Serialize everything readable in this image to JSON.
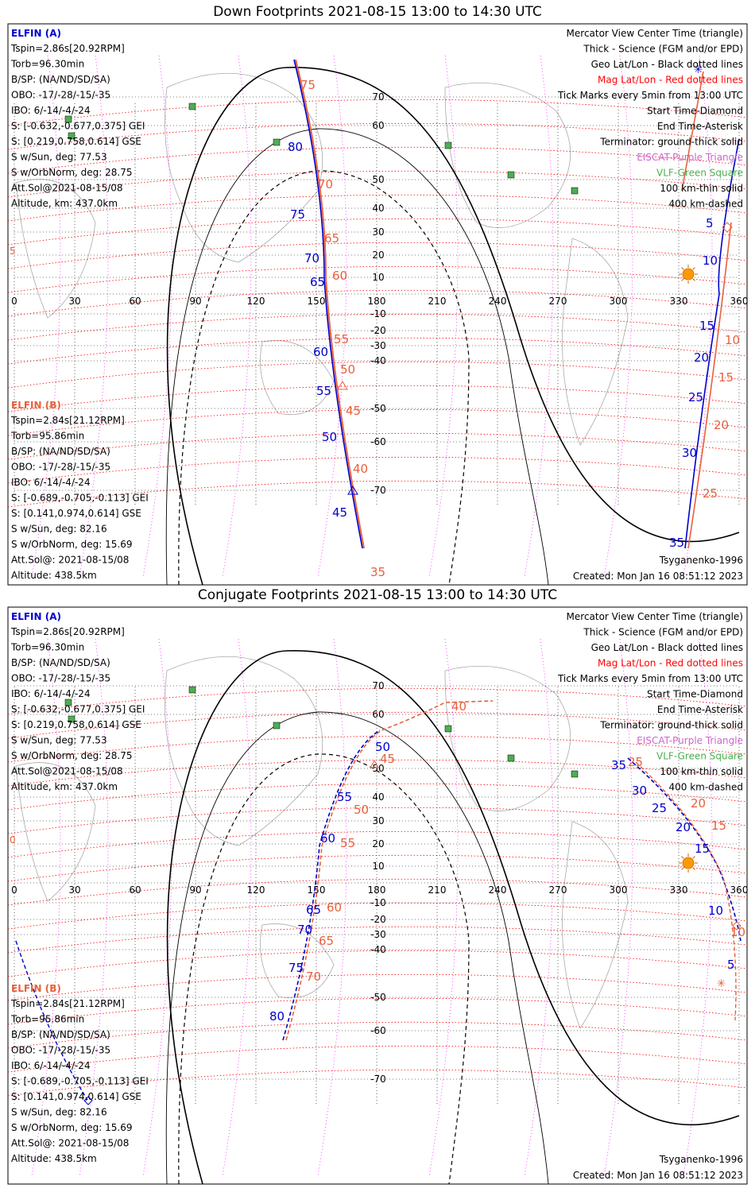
{
  "colors": {
    "elfin_a": "#0000cc",
    "elfin_b": "#e8603c",
    "mag_grid": "#ff0000",
    "geo_grid": "#000000",
    "mag_lon": "#ff00ff",
    "terminator": "#000000",
    "vlf": "#4caf50",
    "eiscat": "#cc66cc",
    "sun": "#ff9900",
    "coast": "#aaaaaa"
  },
  "icons": {
    "sun": "sun-icon",
    "vlf": "square-marker-icon",
    "eiscat": "triangle-marker-icon",
    "start": "diamond-marker-icon",
    "end": "asterisk-marker-icon"
  },
  "panels": [
    {
      "title": "Down Footprints 2021-08-15 13:00 to 14:30 UTC",
      "elfin_a": {
        "header": "ELFIN (A)",
        "lines": [
          "Tspin=2.86s[20.92RPM]",
          "Torb=96.30min",
          "B/SP: (NA/ND/SD/SA)",
          "OBO: -17/-28/-15/-35",
          "IBO: 6/-14/-4/-24",
          "S: [-0.632,-0.677,0.375] GEI",
          "S: [0.219,0.758,0.614] GSE",
          "S w/Sun, deg: 77.53",
          "S w/OrbNorm, deg: 28.75",
          "Att.Sol@2021-08-15/08",
          "Altitude, km: 437.0km"
        ]
      },
      "elfin_b": {
        "header": "ELFIN (B)",
        "lines": [
          "Tspin=2.84s[21.12RPM]",
          "Torb=95.86min",
          "B/SP: (NA/ND/SD/SA)",
          "OBO: -17/-28/-15/-35",
          "IBO: 6/-14/-4/-24",
          "S: [-0.689,-0.705,-0.113] GEI",
          "S: [0.141,0.974,0.614] GSE",
          "S w/Sun, deg: 82.16",
          "S w/OrbNorm, deg: 15.69",
          "Att.Sol@: 2021-08-15/08",
          "Altitude: 438.5km"
        ]
      },
      "legend": [
        {
          "text": "Mercator View Center Time (triangle)",
          "color": "#000000"
        },
        {
          "text": "Thick - Science (FGM and/or EPD)",
          "color": "#000000"
        },
        {
          "text": "Geo Lat/Lon - Black dotted lines",
          "color": "#000000"
        },
        {
          "text": "Mag Lat/Lon - Red dotted lines",
          "color": "#ff0000"
        },
        {
          "text": "Tick Marks every 5min from 13:00 UTC",
          "color": "#000000"
        },
        {
          "text": "Start Time-Diamond",
          "color": "#000000"
        },
        {
          "text": "End Time-Asterisk",
          "color": "#000000"
        },
        {
          "text": "Terminator: ground-thick solid",
          "color": "#000000"
        },
        {
          "text": "EISCAT-Purple Triangle",
          "color": "#cc66cc"
        },
        {
          "text": "VLF-Green Square",
          "color": "#4caf50"
        },
        {
          "text": "100 km-thin solid",
          "color": "#000000"
        },
        {
          "text": "400 km-dashed",
          "color": "#000000"
        }
      ],
      "model": "Tsyganenko-1996",
      "created": "Created: Mon Jan 16 08:51:12 2023",
      "left_edge_label": "5",
      "lon_labels": [
        "0",
        "30",
        "60",
        "90",
        "120",
        "150",
        "180",
        "210",
        "240",
        "270",
        "300",
        "330",
        "360"
      ],
      "lat_labels": [
        "70",
        "60",
        "50",
        "40",
        "30",
        "20",
        "10",
        "-10",
        "-20",
        "-30",
        "-40",
        "-50",
        "-60",
        "-70"
      ],
      "track_a_labels": [
        "80",
        "75",
        "70",
        "65",
        "60",
        "55",
        "50",
        "45",
        "5",
        "10",
        "15",
        "20",
        "25",
        "30",
        "35"
      ],
      "track_b_labels": [
        "75",
        "70",
        "65",
        "60",
        "55",
        "50",
        "45",
        "40",
        "35",
        "10",
        "15",
        "20",
        "25"
      ]
    },
    {
      "title": "Conjugate Footprints 2021-08-15 13:00 to 14:30 UTC",
      "elfin_a": {
        "header": "ELFIN (A)",
        "lines": [
          "Tspin=2.86s[20.92RPM]",
          "Torb=96.30min",
          "B/SP: (NA/ND/SD/SA)",
          "OBO: -17/-28/-15/-35",
          "IBO: 6/-14/-4/-24",
          "S: [-0.632,-0.677,0.375] GEI",
          "S: [0.219,0.758,0.614] GSE",
          "S w/Sun, deg: 77.53",
          "S w/OrbNorm, deg: 28.75",
          "Att.Sol@2021-08-15/08",
          "Altitude, km: 437.0km"
        ]
      },
      "elfin_b": {
        "header": "ELFIN (B)",
        "lines": [
          "Tspin=2.84s[21.12RPM]",
          "Torb=95.86min",
          "B/SP: (NA/ND/SD/SA)",
          "OBO: -17/-28/-15/-35",
          "IBO: 6/-14/-4/-24",
          "S: [-0.689,-0.705,-0.113] GEI",
          "S: [0.141,0.974,0.614] GSE",
          "S w/Sun, deg: 82.16",
          "S w/OrbNorm, deg: 15.69",
          "Att.Sol@: 2021-08-15/08",
          "Altitude: 438.5km"
        ]
      },
      "legend": [
        {
          "text": "Mercator View Center Time (triangle)",
          "color": "#000000"
        },
        {
          "text": "Thick - Science (FGM and/or EPD)",
          "color": "#000000"
        },
        {
          "text": "Geo Lat/Lon - Black dotted lines",
          "color": "#000000"
        },
        {
          "text": "Mag Lat/Lon - Red dotted lines",
          "color": "#ff0000"
        },
        {
          "text": "Tick Marks every 5min from 13:00 UTC",
          "color": "#000000"
        },
        {
          "text": "Start Time-Diamond",
          "color": "#000000"
        },
        {
          "text": "End Time-Asterisk",
          "color": "#000000"
        },
        {
          "text": "Terminator: ground-thick solid",
          "color": "#000000"
        },
        {
          "text": "EISCAT-Purple Triangle",
          "color": "#cc66cc"
        },
        {
          "text": "VLF-Green Square",
          "color": "#4caf50"
        },
        {
          "text": "100 km-thin solid",
          "color": "#000000"
        },
        {
          "text": "400 km-dashed",
          "color": "#000000"
        }
      ],
      "model": "Tsyganenko-1996",
      "created": "Created: Mon Jan 16 08:51:12 2023",
      "left_edge_label": "0",
      "lon_labels": [
        "0",
        "30",
        "60",
        "90",
        "120",
        "150",
        "180",
        "210",
        "240",
        "270",
        "300",
        "330",
        "360"
      ],
      "lat_labels": [
        "70",
        "60",
        "50",
        "40",
        "30",
        "20",
        "10",
        "-10",
        "-20",
        "-30",
        "-40",
        "-50",
        "-60",
        "-70"
      ],
      "track_a_labels": [
        "50",
        "55",
        "60",
        "65",
        "70",
        "75",
        "80",
        "35",
        "30",
        "25",
        "20",
        "15",
        "10",
        "5"
      ],
      "track_b_labels": [
        "40",
        "45",
        "50",
        "55",
        "60",
        "65",
        "70",
        "25",
        "20",
        "15",
        "10"
      ]
    }
  ]
}
